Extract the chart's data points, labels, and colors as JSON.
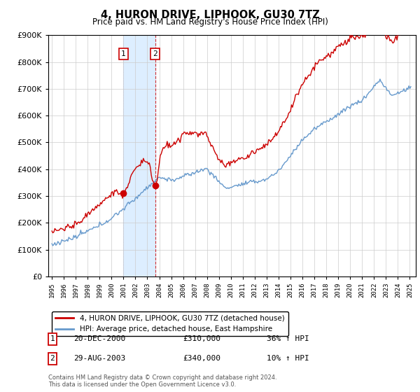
{
  "title": "4, HURON DRIVE, LIPHOOK, GU30 7TZ",
  "subtitle": "Price paid vs. HM Land Registry's House Price Index (HPI)",
  "legend_line1": "4, HURON DRIVE, LIPHOOK, GU30 7TZ (detached house)",
  "legend_line2": "HPI: Average price, detached house, East Hampshire",
  "transaction1_date": "20-DEC-2000",
  "transaction1_price": "£310,000",
  "transaction1_hpi": "36% ↑ HPI",
  "transaction1_year": 2001.0,
  "transaction1_value": 310000,
  "transaction2_date": "29-AUG-2003",
  "transaction2_price": "£340,000",
  "transaction2_hpi": "10% ↑ HPI",
  "transaction2_year": 2003.65,
  "transaction2_value": 340000,
  "footnote": "Contains HM Land Registry data © Crown copyright and database right 2024.\nThis data is licensed under the Open Government Licence v3.0.",
  "red_color": "#cc0000",
  "blue_color": "#6699cc",
  "shading_color": "#ddeeff",
  "ylim_max": 900000,
  "xlim_start": 1994.7,
  "xlim_end": 2025.5,
  "hpi_seed": 12345,
  "price_seed": 99999
}
